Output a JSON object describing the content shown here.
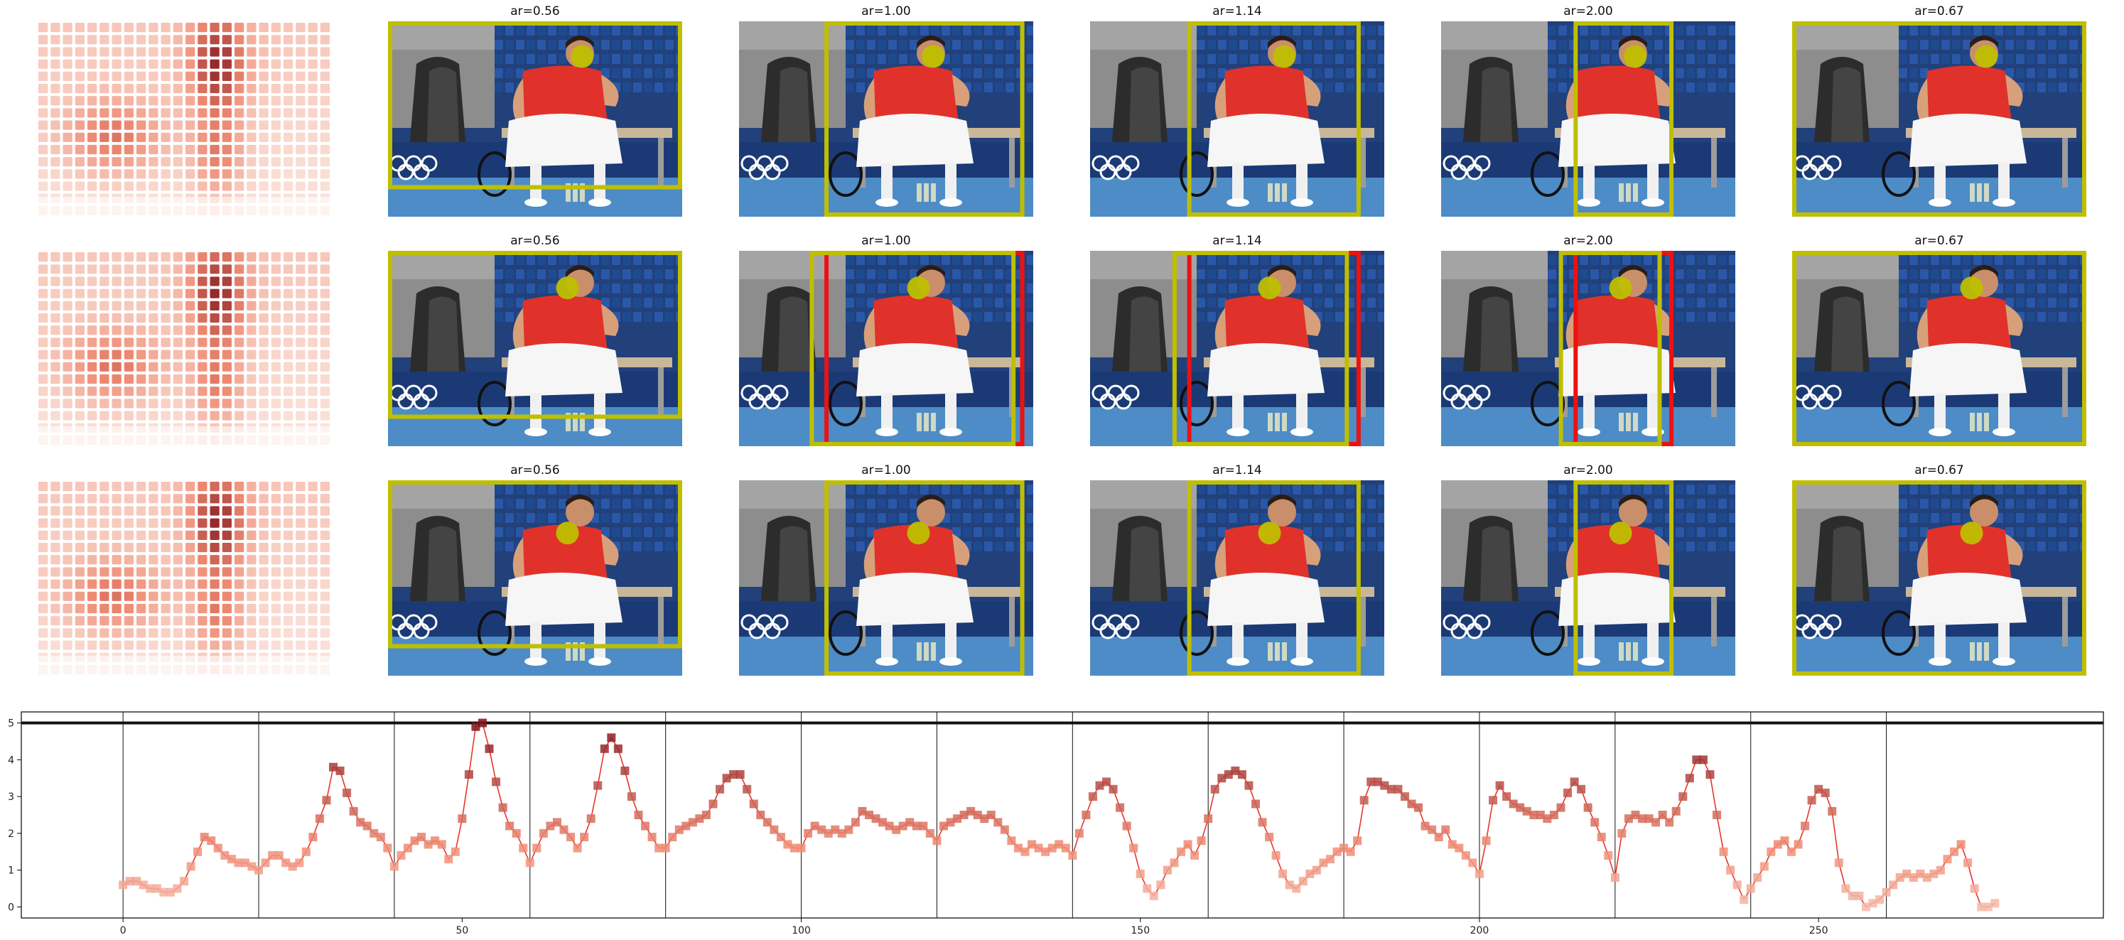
{
  "colors": {
    "crop_box": "#bfbf00",
    "alt_crop_box": "#ee1111",
    "saliency_dot": "#bfbf00",
    "series_line": "#e8352a",
    "boundary_line": "#111111",
    "heat_low": "#fbe9e2",
    "heat_high": "#7f1019"
  },
  "icons": {
    "heatmap": "saliency-heatmap-icon",
    "photo": "tennis-player-photo-icon"
  },
  "grid": {
    "rows": [
      {
        "panels": [
          {
            "title": "ar=0.56"
          },
          {
            "title": "ar=1.00"
          },
          {
            "title": "ar=1.14"
          },
          {
            "title": "ar=2.00"
          },
          {
            "title": "ar=0.67"
          }
        ]
      },
      {
        "panels": [
          {
            "title": "ar=0.56"
          },
          {
            "title": "ar=1.00"
          },
          {
            "title": "ar=1.14"
          },
          {
            "title": "ar=2.00"
          },
          {
            "title": "ar=0.67"
          }
        ]
      },
      {
        "panels": [
          {
            "title": "ar=0.56"
          },
          {
            "title": "ar=1.00"
          },
          {
            "title": "ar=1.14"
          },
          {
            "title": "ar=2.00"
          },
          {
            "title": "ar=0.67"
          }
        ]
      }
    ]
  },
  "chart_data": {
    "type": "line",
    "title": "",
    "xlabel": "",
    "ylabel": "",
    "xlim": [
      -15,
      292
    ],
    "ylim": [
      -0.3,
      5.3
    ],
    "x_ticks": [
      0,
      50,
      100,
      150,
      200,
      250
    ],
    "y_ticks": [
      0,
      1,
      2,
      3,
      4,
      5
    ],
    "x_tick_labels": [
      "0",
      "50",
      "100",
      "150",
      "200",
      "250"
    ],
    "y_tick_labels": [
      "0",
      "1",
      "2",
      "3",
      "4",
      "5"
    ],
    "horizontal_line": 5.0,
    "segment_boundaries": [
      0,
      20,
      40,
      60,
      80,
      100,
      120,
      140,
      160,
      180,
      200,
      220,
      240,
      260
    ],
    "grid": false,
    "legend": "none",
    "series": [
      {
        "x": [
          0,
          1,
          2,
          3,
          4,
          5,
          6,
          7,
          8,
          9,
          10,
          11,
          12,
          13,
          14,
          15,
          16,
          17,
          18,
          19,
          20,
          21,
          22,
          23,
          24,
          25,
          26,
          27,
          28,
          29,
          30,
          31,
          32,
          33,
          34,
          35,
          36,
          37,
          38,
          39,
          40,
          41,
          42,
          43,
          44,
          45,
          46,
          47,
          48,
          49,
          50,
          51,
          52,
          53,
          54,
          55,
          56,
          57,
          58,
          59,
          60,
          61,
          62,
          63,
          64,
          65,
          66,
          67,
          68,
          69,
          70,
          71,
          72,
          73,
          74,
          75,
          76,
          77,
          78,
          79,
          80,
          81,
          82,
          83,
          84,
          85,
          86,
          87,
          88,
          89,
          90,
          91,
          92,
          93,
          94,
          95,
          96,
          97,
          98,
          99,
          100,
          101,
          102,
          103,
          104,
          105,
          106,
          107,
          108,
          109,
          110,
          111,
          112,
          113,
          114,
          115,
          116,
          117,
          118,
          119,
          120,
          121,
          122,
          123,
          124,
          125,
          126,
          127,
          128,
          129,
          130,
          131,
          132,
          133,
          134,
          135,
          136,
          137,
          138,
          139,
          140,
          141,
          142,
          143,
          144,
          145,
          146,
          147,
          148,
          149,
          150,
          151,
          152,
          153,
          154,
          155,
          156,
          157,
          158,
          159,
          160,
          161,
          162,
          163,
          164,
          165,
          166,
          167,
          168,
          169,
          170,
          171,
          172,
          173,
          174,
          175,
          176,
          177,
          178,
          179,
          180,
          181,
          182,
          183,
          184,
          185,
          186,
          187,
          188,
          189,
          190,
          191,
          192,
          193,
          194,
          195,
          196,
          197,
          198,
          199,
          200,
          201,
          202,
          203,
          204,
          205,
          206,
          207,
          208,
          209,
          210,
          211,
          212,
          213,
          214,
          215,
          216,
          217,
          218,
          219,
          220,
          221,
          222,
          223,
          224,
          225,
          226,
          227,
          228,
          229,
          230,
          231,
          232,
          233,
          234,
          235,
          236,
          237,
          238,
          239,
          240,
          241,
          242,
          243,
          244,
          245,
          246,
          247,
          248,
          249,
          250,
          251,
          252,
          253,
          254,
          255,
          256,
          257,
          258,
          259,
          260,
          261,
          262,
          263,
          264,
          265,
          266,
          267,
          268,
          269,
          270,
          271,
          272,
          273,
          274,
          275,
          276
        ],
        "y": [
          0.6,
          0.7,
          0.7,
          0.6,
          0.5,
          0.5,
          0.4,
          0.4,
          0.5,
          0.7,
          1.1,
          1.5,
          1.9,
          1.8,
          1.6,
          1.4,
          1.3,
          1.2,
          1.2,
          1.1,
          1.0,
          1.2,
          1.4,
          1.4,
          1.2,
          1.1,
          1.2,
          1.5,
          1.9,
          2.4,
          2.9,
          3.8,
          3.7,
          3.1,
          2.6,
          2.3,
          2.2,
          2.0,
          1.9,
          1.6,
          1.1,
          1.4,
          1.6,
          1.8,
          1.9,
          1.7,
          1.8,
          1.7,
          1.3,
          1.5,
          2.4,
          3.6,
          4.9,
          5.0,
          4.3,
          3.4,
          2.7,
          2.2,
          2.0,
          1.6,
          1.2,
          1.6,
          2.0,
          2.2,
          2.3,
          2.1,
          1.9,
          1.6,
          1.9,
          2.4,
          3.3,
          4.3,
          4.6,
          4.3,
          3.7,
          3.0,
          2.5,
          2.2,
          1.9,
          1.6,
          1.6,
          1.9,
          2.1,
          2.2,
          2.3,
          2.4,
          2.5,
          2.8,
          3.2,
          3.5,
          3.6,
          3.6,
          3.2,
          2.8,
          2.5,
          2.3,
          2.1,
          1.9,
          1.7,
          1.6,
          1.6,
          2.0,
          2.2,
          2.1,
          2.0,
          2.1,
          2.0,
          2.1,
          2.3,
          2.6,
          2.5,
          2.4,
          2.3,
          2.2,
          2.1,
          2.2,
          2.3,
          2.2,
          2.2,
          2.0,
          1.8,
          2.2,
          2.3,
          2.4,
          2.5,
          2.6,
          2.5,
          2.4,
          2.5,
          2.3,
          2.1,
          1.8,
          1.6,
          1.5,
          1.7,
          1.6,
          1.5,
          1.6,
          1.7,
          1.6,
          1.4,
          2.0,
          2.5,
          3.0,
          3.3,
          3.4,
          3.2,
          2.7,
          2.2,
          1.6,
          0.9,
          0.5,
          0.3,
          0.6,
          1.0,
          1.2,
          1.5,
          1.7,
          1.4,
          1.8,
          2.4,
          3.2,
          3.5,
          3.6,
          3.7,
          3.6,
          3.3,
          2.8,
          2.3,
          1.9,
          1.4,
          0.9,
          0.6,
          0.5,
          0.7,
          0.9,
          1.0,
          1.2,
          1.3,
          1.5,
          1.6,
          1.5,
          1.8,
          2.9,
          3.4,
          3.4,
          3.3,
          3.2,
          3.2,
          3.0,
          2.8,
          2.7,
          2.2,
          2.1,
          1.9,
          2.1,
          1.7,
          1.6,
          1.4,
          1.2,
          0.9,
          1.8,
          2.9,
          3.3,
          3.0,
          2.8,
          2.7,
          2.6,
          2.5,
          2.5,
          2.4,
          2.5,
          2.7,
          3.1,
          3.4,
          3.2,
          2.7,
          2.3,
          1.9,
          1.4,
          0.8,
          2.0,
          2.4,
          2.5,
          2.4,
          2.4,
          2.3,
          2.5,
          2.3,
          2.6,
          3.0,
          3.5,
          4.0,
          4.0,
          3.6,
          2.5,
          1.5,
          1.0,
          0.6,
          0.2,
          0.5,
          0.8,
          1.1,
          1.5,
          1.7,
          1.8,
          1.5,
          1.7,
          2.2,
          2.9,
          3.2,
          3.1,
          2.6,
          1.2,
          0.5,
          0.3,
          0.3,
          0.0,
          0.1,
          0.2,
          0.4,
          0.6,
          0.8,
          0.9,
          0.8,
          0.9,
          0.8,
          0.9,
          1.0,
          1.3,
          1.5,
          1.7,
          1.2,
          0.5,
          0.0,
          0.0,
          0.1
        ]
      }
    ]
  }
}
